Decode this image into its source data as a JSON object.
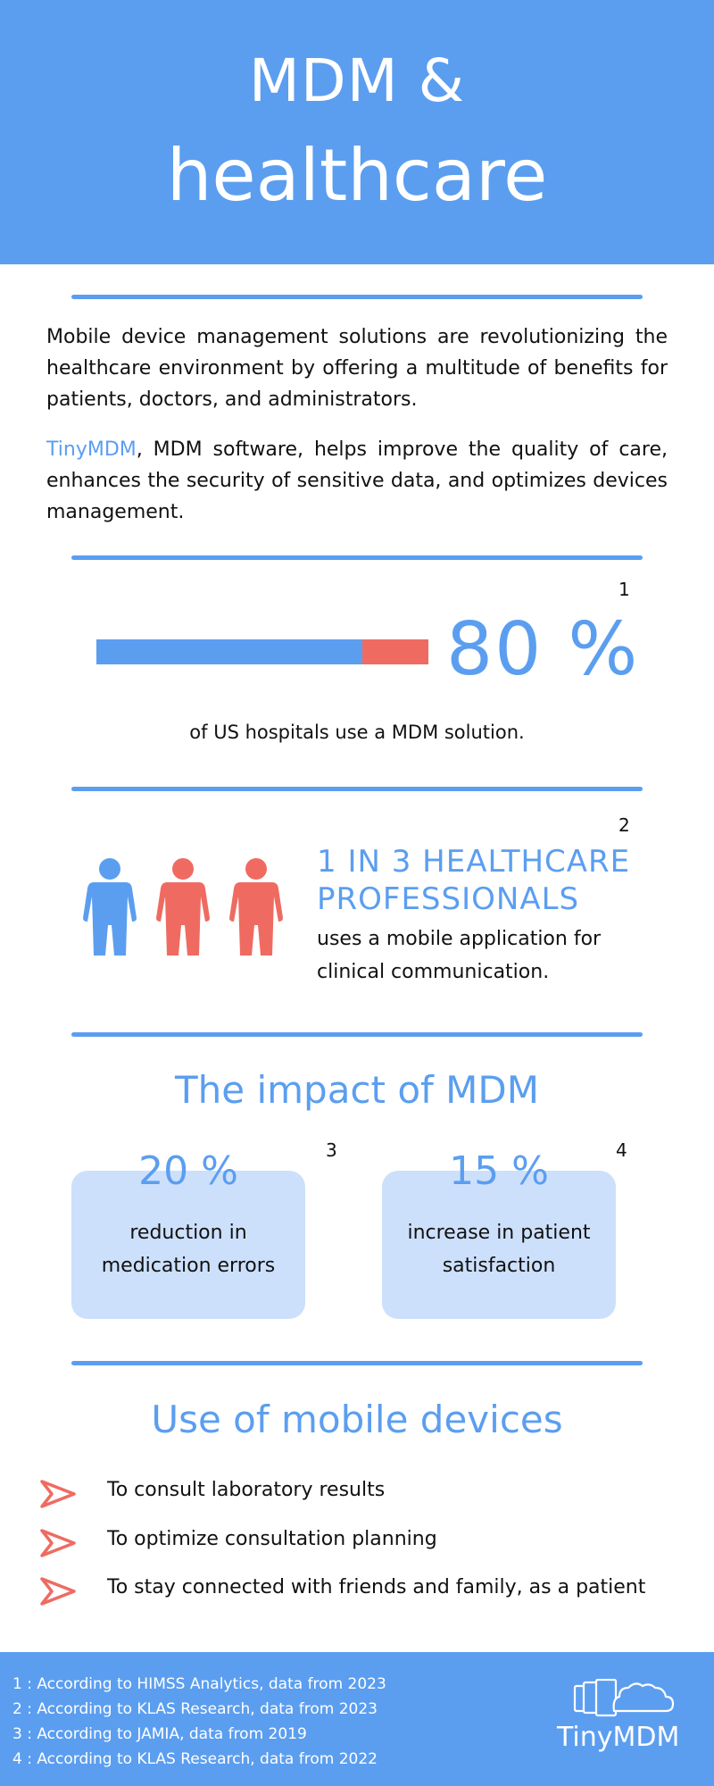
{
  "header": {
    "title_line1": "MDM &",
    "title_line2": "healthcare"
  },
  "intro": {
    "paragraph1": "Mobile device management solutions are revolutionizing the healthcare environment by offering a multitude of benefits for patients, doctors, and administrators.",
    "brand": "TinyMDM",
    "paragraph2_rest": ", MDM software, helps improve the quality of care, enhances the security of sensitive data, and optimizes devices management."
  },
  "stat1": {
    "footnote": "1",
    "value": "80 %",
    "fraction": 0.8,
    "caption": "of US hospitals use a MDM solution."
  },
  "stat2": {
    "footnote": "2",
    "heading_line1": "1 IN 3 HEALTHCARE",
    "heading_line2": "PROFESSIONALS",
    "text_line1": "uses a mobile application for",
    "text_line2": "clinical communication.",
    "highlighted": 1,
    "total": 3
  },
  "impact": {
    "title": "The impact of MDM",
    "cards": [
      {
        "footnote": "3",
        "value": "20 %",
        "line1": "reduction in",
        "line2": "medication errors"
      },
      {
        "footnote": "4",
        "value": "15 %",
        "line1": "increase in patient",
        "line2": "satisfaction"
      }
    ]
  },
  "usage": {
    "title": "Use of mobile devices",
    "items": [
      "To consult laboratory results",
      "To optimize consultation planning",
      "To stay connected with friends and family, as a patient"
    ]
  },
  "footer": {
    "sources": [
      "1 : According to HIMSS Analytics, data from 2023",
      "2 : According to KLAS Research, data from 2023",
      "3 : According to JAMIA, data from 2019",
      "4 : According to KLAS Research, data from 2022"
    ],
    "logo_text": "TinyMDM"
  },
  "colors": {
    "primary": "#5b9ef0",
    "accent": "#ef6b61",
    "card": "#cde0fb"
  }
}
